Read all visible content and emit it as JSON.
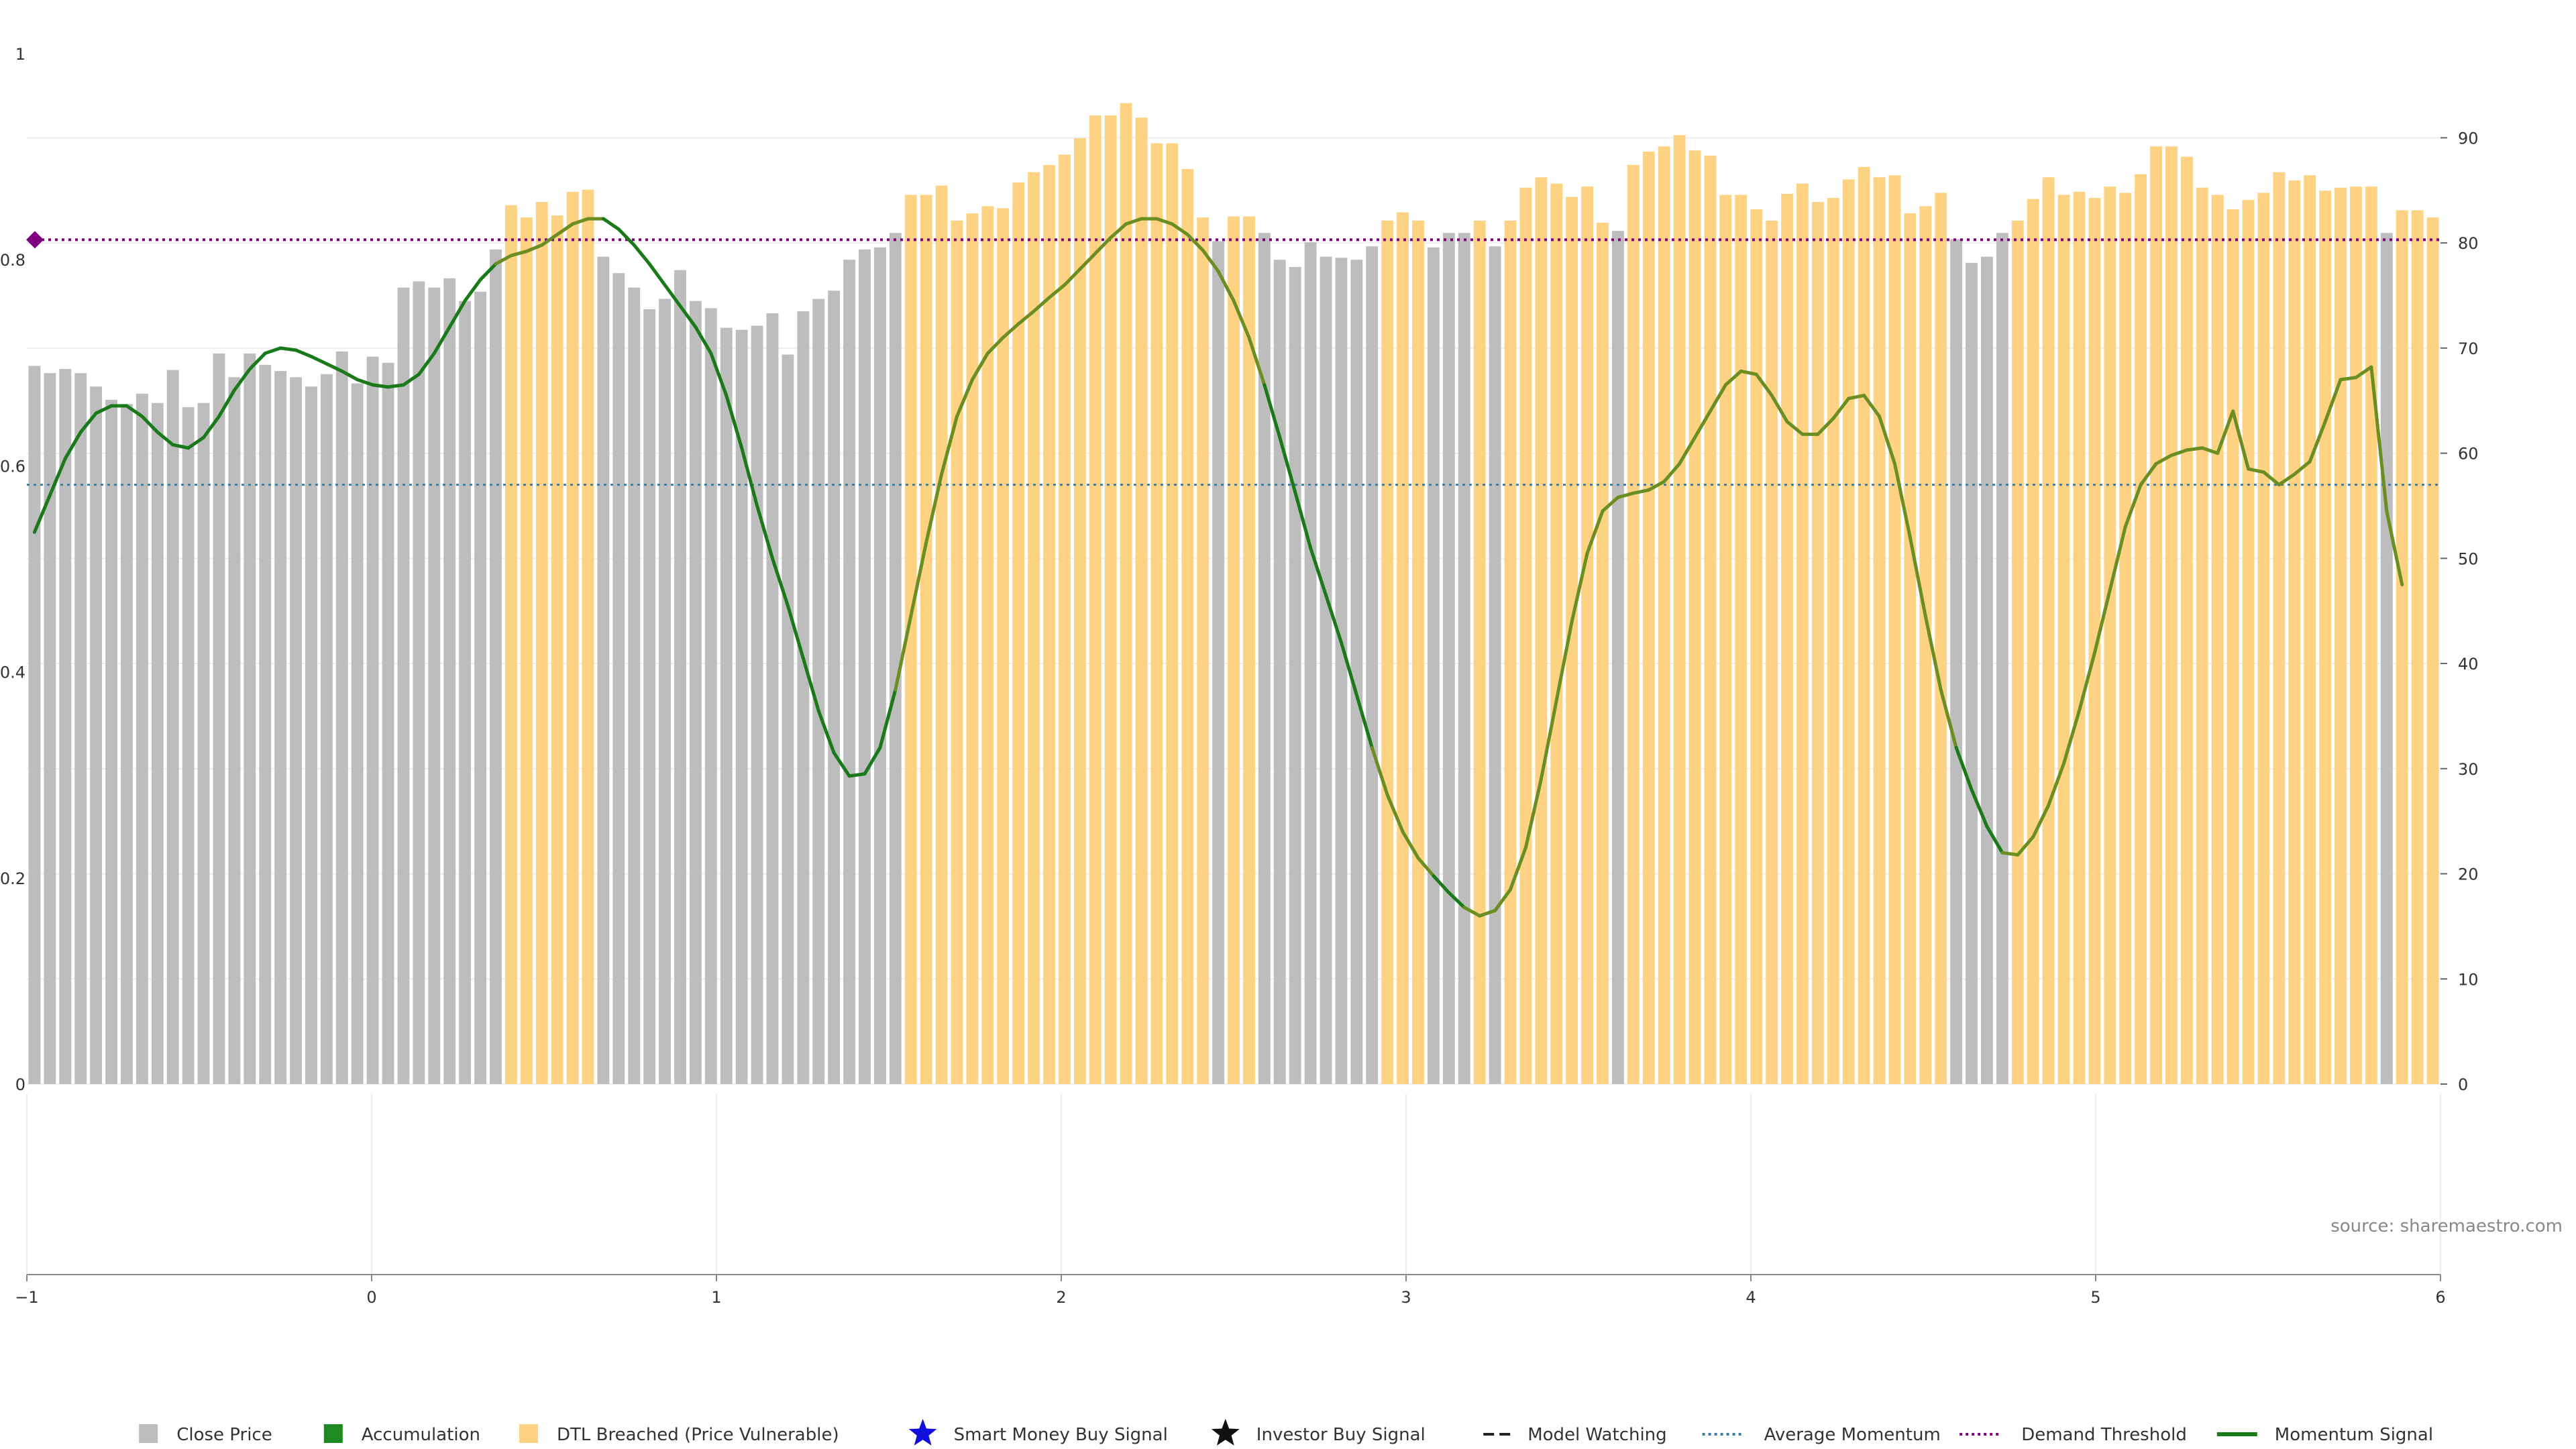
{
  "chart_data": {
    "type": "bar",
    "title": "",
    "xlabel": "",
    "ylabel": "",
    "ylabel_right": "",
    "source": "source: sharemaestro.com",
    "xlim": [
      -1,
      6
    ],
    "x_ticks": [
      "−1",
      "0",
      "1",
      "2",
      "3",
      "4",
      "5",
      "6"
    ],
    "ylim_left": [
      0,
      1
    ],
    "y_ticks_left": [
      "0",
      "0.2",
      "0.4",
      "0.6",
      "0.8",
      "1"
    ],
    "ylim_right": [
      0,
      98
    ],
    "y_ticks_right": [
      "0",
      "10",
      "20",
      "30",
      "40",
      "50",
      "60",
      "70",
      "80",
      "90"
    ],
    "grid": true,
    "legend_position": "bottom-center",
    "colors": {
      "close_price": "#bdbdbd",
      "accumulation": "#1f8a1f",
      "dtl_breached": "#fdd283",
      "smart_money": "#1010dd",
      "investor": "#111111",
      "model_watching": "#222222",
      "average_momentum": "#3d7ea6",
      "demand_threshold": "#800080",
      "momentum_signal": "#1a7a1a",
      "momentum_signal_dtl": "#6b8e23"
    },
    "close_price": [
      0.697,
      0.69,
      0.694,
      0.69,
      0.677,
      0.664,
      0.66,
      0.67,
      0.661,
      0.693,
      0.657,
      0.661,
      0.709,
      0.686,
      0.709,
      0.698,
      0.692,
      0.686,
      0.677,
      0.689,
      0.711,
      0.68,
      0.706,
      0.7,
      0.773,
      0.779,
      0.773,
      0.782,
      0.76,
      0.769,
      0.81,
      0.853,
      0.841,
      0.856,
      0.843,
      0.866,
      0.868,
      0.803,
      0.787,
      0.773,
      0.752,
      0.762,
      0.79,
      0.76,
      0.753,
      0.734,
      0.732,
      0.736,
      0.748,
      0.708,
      0.75,
      0.762,
      0.77,
      0.8,
      0.81,
      0.812,
      0.826,
      0.863,
      0.863,
      0.872,
      0.838,
      0.845,
      0.852,
      0.85,
      0.875,
      0.885,
      0.892,
      0.902,
      0.918,
      0.94,
      0.94,
      0.952,
      0.938,
      0.913,
      0.913,
      0.888,
      0.841,
      0.818,
      0.842,
      0.842,
      0.826,
      0.8,
      0.793,
      0.817,
      0.803,
      0.802,
      0.8,
      0.813,
      0.838,
      0.846,
      0.838,
      0.812,
      0.826,
      0.826,
      0.838,
      0.813,
      0.838,
      0.87,
      0.88,
      0.874,
      0.861,
      0.871,
      0.836,
      0.828,
      0.892,
      0.905,
      0.91,
      0.921,
      0.906,
      0.901,
      0.863,
      0.863,
      0.849,
      0.838,
      0.864,
      0.874,
      0.856,
      0.86,
      0.878,
      0.89,
      0.88,
      0.882,
      0.845,
      0.852,
      0.865,
      0.82,
      0.797,
      0.803,
      0.826,
      0.838,
      0.859,
      0.88,
      0.863,
      0.866,
      0.86,
      0.871,
      0.865,
      0.883,
      0.91,
      0.91,
      0.9,
      0.87,
      0.863,
      0.849,
      0.858,
      0.865,
      0.885,
      0.877,
      0.882,
      0.867,
      0.87,
      0.871,
      0.871,
      0.826,
      0.848,
      0.848,
      0.841
    ],
    "dtl_breached": [
      0,
      0,
      0,
      0,
      0,
      0,
      0,
      0,
      0,
      0,
      0,
      0,
      0,
      0,
      0,
      0,
      0,
      0,
      0,
      0,
      0,
      0,
      0,
      0,
      0,
      0,
      0,
      0,
      0,
      0,
      0,
      1,
      1,
      1,
      1,
      1,
      1,
      0,
      0,
      0,
      0,
      0,
      0,
      0,
      0,
      0,
      0,
      0,
      0,
      0,
      0,
      0,
      0,
      0,
      0,
      0,
      0,
      1,
      1,
      1,
      1,
      1,
      1,
      1,
      1,
      1,
      1,
      1,
      1,
      1,
      1,
      1,
      1,
      1,
      1,
      1,
      1,
      0,
      1,
      1,
      0,
      0,
      0,
      0,
      0,
      0,
      0,
      0,
      1,
      1,
      1,
      0,
      0,
      0,
      1,
      0,
      1,
      1,
      1,
      1,
      1,
      1,
      1,
      0,
      1,
      1,
      1,
      1,
      1,
      1,
      1,
      1,
      1,
      1,
      1,
      1,
      1,
      1,
      1,
      1,
      1,
      1,
      1,
      1,
      1,
      0,
      0,
      0,
      0,
      1,
      1,
      1,
      1,
      1,
      1,
      1,
      1,
      1,
      1,
      1,
      1,
      1,
      1,
      1,
      1,
      1,
      1,
      1,
      1,
      1,
      1,
      1,
      1,
      0,
      1,
      1,
      1
    ],
    "momentum_signal": [
      52.5,
      56.0,
      59.5,
      62.0,
      63.8,
      64.5,
      64.5,
      63.5,
      62.0,
      60.8,
      60.5,
      61.5,
      63.5,
      66.0,
      68.0,
      69.5,
      70.0,
      69.8,
      69.2,
      68.5,
      67.8,
      67.0,
      66.5,
      66.3,
      66.5,
      67.5,
      69.5,
      72.0,
      74.5,
      76.5,
      78.0,
      78.8,
      79.2,
      79.8,
      80.8,
      81.8,
      82.3,
      82.3,
      81.3,
      79.8,
      78.0,
      76.0,
      74.0,
      72.0,
      69.5,
      65.5,
      60.5,
      55.0,
      50.0,
      45.5,
      40.5,
      35.5,
      31.5,
      29.3,
      29.5,
      32.0,
      37.5,
      44.5,
      51.5,
      58.0,
      63.5,
      67.0,
      69.5,
      71.0,
      72.3,
      73.5,
      74.8,
      76.0,
      77.5,
      79.0,
      80.5,
      81.8,
      82.3,
      82.3,
      81.8,
      80.8,
      79.3,
      77.3,
      74.5,
      71.0,
      66.5,
      61.5,
      56.3,
      51.0,
      46.5,
      42.0,
      37.0,
      32.0,
      27.5,
      24.0,
      21.5,
      19.8,
      18.2,
      16.8,
      16.0,
      16.5,
      18.5,
      22.5,
      29.0,
      36.5,
      44.0,
      50.5,
      54.5,
      55.8,
      56.2,
      56.5,
      57.3,
      59.0,
      61.5,
      64.0,
      66.5,
      67.8,
      67.5,
      65.5,
      63.0,
      61.8,
      61.8,
      63.3,
      65.2,
      65.5,
      63.5,
      59.0,
      52.0,
      44.5,
      37.5,
      32.0,
      28.0,
      24.5,
      22.0,
      21.8,
      23.5,
      26.5,
      30.5,
      35.5,
      41.0,
      47.0,
      53.0,
      57.0,
      59.0,
      59.8,
      60.3,
      60.5,
      60.0,
      64.0,
      58.5,
      58.2,
      57.0,
      58.0,
      59.2,
      63.0,
      67.0,
      67.2,
      68.2,
      54.5,
      47.5
    ],
    "demand_threshold": 80.3,
    "average_momentum": 57.0,
    "legend": [
      {
        "key": "close_price",
        "label": "Close Price",
        "symbol": "square"
      },
      {
        "key": "accumulation",
        "label": "Accumulation",
        "symbol": "square"
      },
      {
        "key": "dtl_breached",
        "label": "DTL Breached (Price Vulnerable)",
        "symbol": "square"
      },
      {
        "key": "smart_money",
        "label": "Smart Money Buy Signal",
        "symbol": "star"
      },
      {
        "key": "investor",
        "label": "Investor Buy Signal",
        "symbol": "star"
      },
      {
        "key": "model_watching",
        "label": "Model Watching",
        "symbol": "dash"
      },
      {
        "key": "average_momentum",
        "label": "Average Momentum",
        "symbol": "dot"
      },
      {
        "key": "demand_threshold",
        "label": "Demand Threshold",
        "symbol": "dot"
      },
      {
        "key": "momentum_signal",
        "label": "Momentum Signal",
        "symbol": "line"
      }
    ]
  }
}
